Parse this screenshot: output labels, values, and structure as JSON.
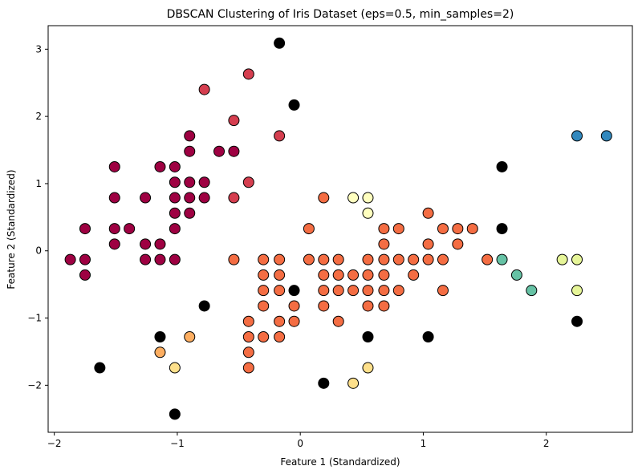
{
  "chart_data": {
    "type": "scatter",
    "title": "DBSCAN Clustering of Iris Dataset (eps=0.5, min_samples=2)",
    "xlabel": "Feature 1 (Standardized)",
    "ylabel": "Feature 2 (Standardized)",
    "xlim": [
      -2.05,
      2.7
    ],
    "ylim": [
      -2.7,
      3.35
    ],
    "xticks": [
      -2,
      -1,
      0,
      1,
      2
    ],
    "yticks": [
      -2,
      -1,
      0,
      1,
      2,
      3
    ],
    "xtick_labels": [
      "−2",
      "−1",
      "0",
      "1",
      "2"
    ],
    "ytick_labels": [
      "−2",
      "−1",
      "0",
      "1",
      "2",
      "3"
    ],
    "grid": false,
    "legend": "none",
    "marker_edge_color": "#000000",
    "series": [
      {
        "color": "#9e0142",
        "points": [
          [
            -1.87,
            -0.13
          ],
          [
            -1.75,
            0.33
          ],
          [
            -1.75,
            -0.13
          ],
          [
            -1.75,
            -0.36
          ],
          [
            -1.51,
            1.25
          ],
          [
            -1.51,
            0.79
          ],
          [
            -1.51,
            0.33
          ],
          [
            -1.51,
            0.1
          ],
          [
            -1.39,
            0.33
          ],
          [
            -1.26,
            0.79
          ],
          [
            -1.26,
            0.1
          ],
          [
            -1.26,
            -0.13
          ],
          [
            -1.14,
            1.25
          ],
          [
            -1.14,
            0.1
          ],
          [
            -1.14,
            -0.13
          ],
          [
            -1.02,
            1.25
          ],
          [
            -1.02,
            1.02
          ],
          [
            -1.02,
            0.79
          ],
          [
            -1.02,
            0.56
          ],
          [
            -1.02,
            0.33
          ],
          [
            -1.02,
            -0.13
          ],
          [
            -0.9,
            1.71
          ],
          [
            -0.9,
            1.48
          ],
          [
            -0.9,
            1.02
          ],
          [
            -0.9,
            0.79
          ],
          [
            -0.9,
            0.56
          ],
          [
            -0.78,
            1.02
          ],
          [
            -0.78,
            0.79
          ],
          [
            -0.66,
            1.48
          ],
          [
            -0.54,
            1.48
          ]
        ]
      },
      {
        "color": "#d53e4f",
        "points": [
          [
            -0.78,
            2.4
          ],
          [
            -0.54,
            1.94
          ],
          [
            -0.54,
            0.79
          ],
          [
            -0.42,
            2.63
          ],
          [
            -0.42,
            1.02
          ],
          [
            -0.17,
            1.71
          ]
        ]
      },
      {
        "color": "#f46d43",
        "points": [
          [
            -0.54,
            -0.13
          ],
          [
            -0.3,
            -0.13
          ],
          [
            -0.3,
            -0.36
          ],
          [
            -0.3,
            -0.59
          ],
          [
            -0.3,
            -0.82
          ],
          [
            -0.3,
            -1.28
          ],
          [
            -0.42,
            -1.05
          ],
          [
            -0.42,
            -1.28
          ],
          [
            -0.42,
            -1.51
          ],
          [
            -0.42,
            -1.74
          ],
          [
            -0.17,
            -0.13
          ],
          [
            -0.17,
            -0.36
          ],
          [
            -0.17,
            -0.59
          ],
          [
            -0.17,
            -1.05
          ],
          [
            -0.17,
            -1.28
          ],
          [
            -0.05,
            -0.82
          ],
          [
            -0.05,
            -1.05
          ],
          [
            0.07,
            0.33
          ],
          [
            0.07,
            -0.13
          ],
          [
            0.19,
            0.79
          ],
          [
            0.19,
            -0.13
          ],
          [
            0.19,
            -0.36
          ],
          [
            0.19,
            -0.59
          ],
          [
            0.19,
            -0.82
          ],
          [
            0.31,
            -0.13
          ],
          [
            0.31,
            -0.36
          ],
          [
            0.31,
            -0.59
          ],
          [
            0.31,
            -1.05
          ],
          [
            0.43,
            -0.36
          ],
          [
            0.43,
            -0.59
          ],
          [
            0.55,
            -0.13
          ],
          [
            0.55,
            -0.36
          ],
          [
            0.55,
            -0.59
          ],
          [
            0.55,
            -0.82
          ],
          [
            0.68,
            0.33
          ],
          [
            0.68,
            0.1
          ],
          [
            0.68,
            -0.13
          ],
          [
            0.68,
            -0.36
          ],
          [
            0.68,
            -0.59
          ],
          [
            0.68,
            -0.82
          ],
          [
            0.8,
            0.33
          ],
          [
            0.8,
            -0.13
          ],
          [
            0.8,
            -0.59
          ],
          [
            0.92,
            -0.13
          ],
          [
            0.92,
            -0.36
          ],
          [
            1.04,
            0.56
          ],
          [
            1.04,
            0.1
          ],
          [
            1.04,
            -0.13
          ],
          [
            1.16,
            0.33
          ],
          [
            1.16,
            -0.13
          ],
          [
            1.16,
            -0.59
          ],
          [
            1.28,
            0.33
          ],
          [
            1.28,
            0.1
          ],
          [
            1.4,
            0.33
          ],
          [
            1.52,
            -0.13
          ]
        ]
      },
      {
        "color": "#fdae61",
        "points": [
          [
            -1.14,
            -1.51
          ],
          [
            -0.9,
            -1.28
          ]
        ]
      },
      {
        "color": "#fee08b",
        "points": [
          [
            -1.02,
            -1.74
          ],
          [
            0.43,
            -1.97
          ],
          [
            0.55,
            -1.74
          ]
        ]
      },
      {
        "color": "#ffffbf",
        "points": [
          [
            0.43,
            0.79
          ],
          [
            0.55,
            0.79
          ],
          [
            0.55,
            0.56
          ]
        ]
      },
      {
        "color": "#e6f598",
        "points": [
          [
            2.13,
            -0.13
          ],
          [
            2.25,
            -0.13
          ],
          [
            2.25,
            -0.59
          ]
        ]
      },
      {
        "color": "#66c2a5",
        "points": [
          [
            1.64,
            -0.13
          ],
          [
            1.76,
            -0.36
          ],
          [
            1.88,
            -0.59
          ]
        ]
      },
      {
        "color": "#3288bd",
        "points": [
          [
            2.25,
            1.71
          ],
          [
            2.49,
            1.71
          ]
        ]
      },
      {
        "color": "#000000",
        "points": [
          [
            -0.17,
            3.09
          ],
          [
            -0.05,
            2.17
          ],
          [
            -0.78,
            -0.82
          ],
          [
            -1.14,
            -1.28
          ],
          [
            -1.63,
            -1.74
          ],
          [
            -1.02,
            -2.43
          ],
          [
            -0.05,
            -0.59
          ],
          [
            0.19,
            -1.97
          ],
          [
            0.55,
            -1.28
          ],
          [
            1.04,
            -1.28
          ],
          [
            1.64,
            1.25
          ],
          [
            1.64,
            0.33
          ],
          [
            2.25,
            -1.05
          ]
        ]
      }
    ]
  }
}
